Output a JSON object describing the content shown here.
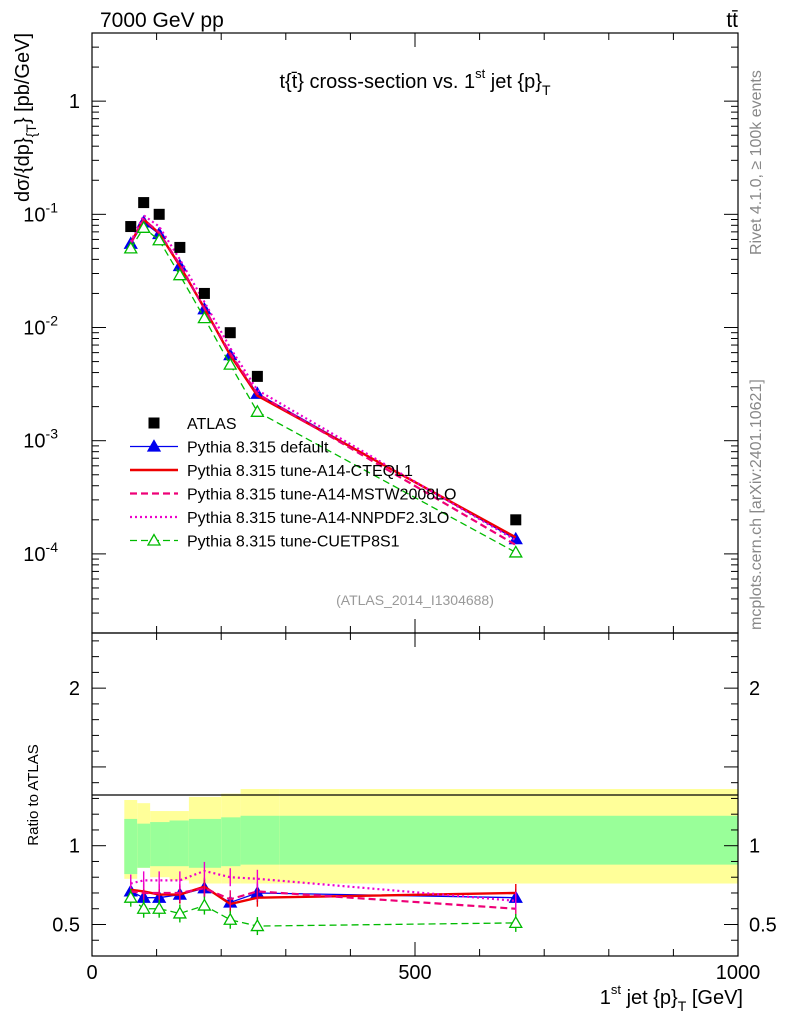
{
  "header": {
    "energy_label": "7000 GeV pp",
    "process_label": "tt̄"
  },
  "side_labels": {
    "rivet": "Rivet 4.1.0, ≥ 100k events",
    "mcplots": "mcplots.cern.ch [arXiv:2401.10621]"
  },
  "chart_data": [
    {
      "type": "line",
      "title": "t{t̄} cross-section vs. 1st jet {p}T",
      "title_parts": {
        "main": "t{t̄} cross-section vs. 1",
        "sup": "st",
        "mid": " jet {p}",
        "sub": "T"
      },
      "ylabel": "dσ/{dp}T} [pb/GeV]",
      "ylabel_parts": {
        "main": "dσ/{dp}",
        "sub": "{T",
        "tail": "} [pb/GeV]"
      },
      "yscale": "log",
      "ylim": [
        2e-05,
        4
      ],
      "xlim": [
        0,
        1000
      ],
      "y_ticks": [
        {
          "value": 1,
          "label": "1"
        },
        {
          "value": 0.1,
          "label": "10",
          "exp": "-1"
        },
        {
          "value": 0.01,
          "label": "10",
          "exp": "-2"
        },
        {
          "value": 0.001,
          "label": "10",
          "exp": "-3"
        },
        {
          "value": 0.0001,
          "label": "10",
          "exp": "-4"
        }
      ],
      "analysis_tag": "(ATLAS_2014_I1304688)",
      "x": [
        60,
        80,
        104,
        136,
        174,
        214,
        256,
        656
      ],
      "series": [
        {
          "name": "ATLAS",
          "style": "data",
          "color": "#000000",
          "values": [
            0.078,
            0.127,
            0.1,
            0.051,
            0.02,
            0.009,
            0.0037,
            0.0002
          ]
        },
        {
          "name": "Pythia 8.315 default",
          "style": "solid-triangle",
          "color": "#0000ee",
          "values": [
            0.055,
            0.085,
            0.067,
            0.035,
            0.0145,
            0.0057,
            0.0026,
            0.000135
          ]
        },
        {
          "name": "Pythia 8.315 tune-A14-CTEQL1",
          "style": "solid",
          "color": "#ee0000",
          "values": [
            0.056,
            0.09,
            0.068,
            0.035,
            0.0148,
            0.0057,
            0.0025,
            0.00014
          ]
        },
        {
          "name": "Pythia 8.315 tune-A14-MSTW2008LO",
          "style": "dashed",
          "color": "#ee0077",
          "values": [
            0.055,
            0.09,
            0.069,
            0.036,
            0.0147,
            0.0059,
            0.0026,
            0.00012
          ]
        },
        {
          "name": "Pythia 8.315 tune-A14-NNPDF2.3LO",
          "style": "dotted",
          "color": "#ee00cc",
          "values": [
            0.057,
            0.098,
            0.078,
            0.04,
            0.0168,
            0.0066,
            0.0028,
            0.000132
          ]
        },
        {
          "name": "Pythia 8.315 tune-CUETP8S1",
          "style": "dashed-open-triangle",
          "color": "#00bb00",
          "values": [
            0.05,
            0.076,
            0.059,
            0.029,
            0.0121,
            0.0047,
            0.0018,
            0.000103
          ]
        }
      ]
    },
    {
      "type": "line",
      "ylabel": "Ratio to ATLAS",
      "xlabel": "1st jet {p}T [GeV]",
      "xlabel_parts": {
        "main": "1",
        "sup": "st",
        "mid": " jet {p}",
        "sub": "T",
        "tail": " [GeV]"
      },
      "xlim": [
        0,
        1000
      ],
      "ylim": [
        0.3,
        2.35
      ],
      "x_ticks": [
        {
          "value": 0,
          "label": "0"
        },
        {
          "value": 500,
          "label": "500"
        },
        {
          "value": 1000,
          "label": "1000"
        }
      ],
      "y_ticks": [
        {
          "value": 0.5,
          "label": "0.5"
        },
        {
          "value": 1,
          "label": "1"
        },
        {
          "value": 2,
          "label": "2"
        }
      ],
      "band_edges": [
        50,
        70,
        90,
        120,
        150,
        200,
        230,
        290,
        1030
      ],
      "band_green": [
        [
          0.82,
          1.17
        ],
        [
          0.86,
          1.14
        ],
        [
          0.87,
          1.15
        ],
        [
          0.87,
          1.16
        ],
        [
          0.86,
          1.17
        ],
        [
          0.87,
          1.18
        ],
        [
          0.88,
          1.19
        ],
        [
          0.88,
          1.19
        ]
      ],
      "band_yellow": [
        [
          0.79,
          1.29
        ],
        [
          0.86,
          1.27
        ],
        [
          0.8,
          1.22
        ],
        [
          0.78,
          1.22
        ],
        [
          0.76,
          1.31
        ],
        [
          0.76,
          1.33
        ],
        [
          0.76,
          1.36
        ],
        [
          0.76,
          1.36
        ]
      ],
      "x": [
        60,
        80,
        104,
        136,
        174,
        214,
        256,
        656
      ],
      "series": [
        {
          "name": "Pythia 8.315 default",
          "color": "#0000ee",
          "values": [
            0.71,
            0.67,
            0.67,
            0.69,
            0.73,
            0.64,
            0.7,
            0.67
          ]
        },
        {
          "name": "Pythia 8.315 tune-A14-CTEQL1",
          "color": "#ee0000",
          "values": [
            0.72,
            0.71,
            0.69,
            0.69,
            0.74,
            0.63,
            0.67,
            0.7
          ]
        },
        {
          "name": "Pythia 8.315 tune-A14-MSTW2008LO",
          "color": "#ee0077",
          "values": [
            0.71,
            0.7,
            0.7,
            0.7,
            0.73,
            0.66,
            0.71,
            0.6
          ]
        },
        {
          "name": "Pythia 8.315 tune-A14-NNPDF2.3LO",
          "color": "#ee00cc",
          "values": [
            0.76,
            0.78,
            0.78,
            0.78,
            0.84,
            0.8,
            0.79,
            0.65
          ]
        },
        {
          "name": "Pythia 8.315 tune-CUETP8S1",
          "color": "#00bb00",
          "values": [
            0.67,
            0.6,
            0.6,
            0.57,
            0.62,
            0.53,
            0.49,
            0.51
          ]
        }
      ]
    }
  ]
}
